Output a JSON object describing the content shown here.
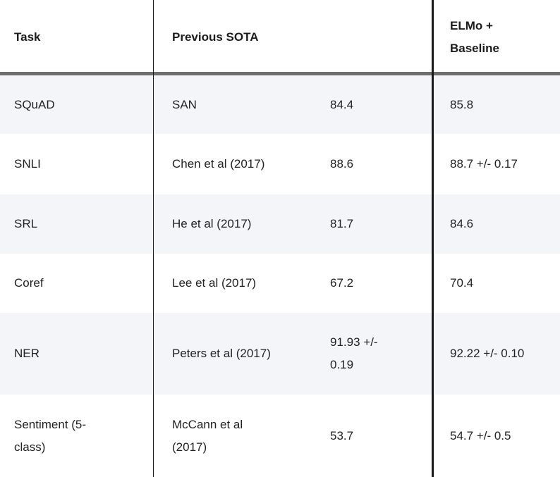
{
  "table": {
    "headers": {
      "task": "Task",
      "previous_sota": "Previous SOTA",
      "elmo_line1": "ELMo +",
      "elmo_line2": "Baseline"
    },
    "rows": [
      {
        "task": [
          "SQuAD"
        ],
        "model": [
          "SAN"
        ],
        "score": [
          "84.4"
        ],
        "elmo": [
          "85.8"
        ]
      },
      {
        "task": [
          "SNLI"
        ],
        "model": [
          "Chen et al (2017)"
        ],
        "score": [
          "88.6"
        ],
        "elmo": [
          "88.7 +/- 0.17"
        ]
      },
      {
        "task": [
          "SRL"
        ],
        "model": [
          "He et al (2017)"
        ],
        "score": [
          "81.7"
        ],
        "elmo": [
          "84.6"
        ]
      },
      {
        "task": [
          "Coref"
        ],
        "model": [
          "Lee et al (2017)"
        ],
        "score": [
          "67.2"
        ],
        "elmo": [
          "70.4"
        ]
      },
      {
        "task": [
          "NER"
        ],
        "model": [
          "Peters et al (2017)"
        ],
        "score": [
          "91.93 +/-",
          "0.19"
        ],
        "elmo": [
          "92.22 +/- 0.10"
        ]
      },
      {
        "task": [
          "Sentiment (5-",
          "class)"
        ],
        "model": [
          "McCann et al",
          "(2017)"
        ],
        "score": [
          "53.7"
        ],
        "elmo": [
          "54.7 +/- 0.5"
        ]
      }
    ]
  }
}
